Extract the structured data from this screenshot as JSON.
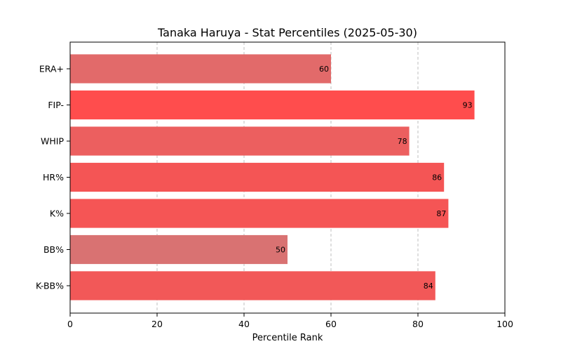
{
  "chart_data": {
    "type": "bar",
    "orientation": "horizontal",
    "title": "Tanaka Haruya - Stat Percentiles (2025-05-30)",
    "xlabel": "Percentile Rank",
    "ylabel": "",
    "xlim": [
      0,
      100
    ],
    "xticks": [
      "0",
      "20",
      "40",
      "60",
      "80",
      "100"
    ],
    "grid": "vertical-dashed",
    "categories": [
      "ERA+",
      "FIP-",
      "WHIP",
      "HR%",
      "K%",
      "BB%",
      "K-BB%"
    ],
    "values": [
      60,
      93,
      78,
      86,
      87,
      50,
      84
    ],
    "data_labels": [
      "60",
      "93",
      "78",
      "86",
      "87",
      "50",
      "84"
    ],
    "colors": [
      "#e26a6a",
      "#ff4d4d",
      "#ec5f5f",
      "#f45555",
      "#f55555",
      "#d97272",
      "#f25858"
    ]
  }
}
